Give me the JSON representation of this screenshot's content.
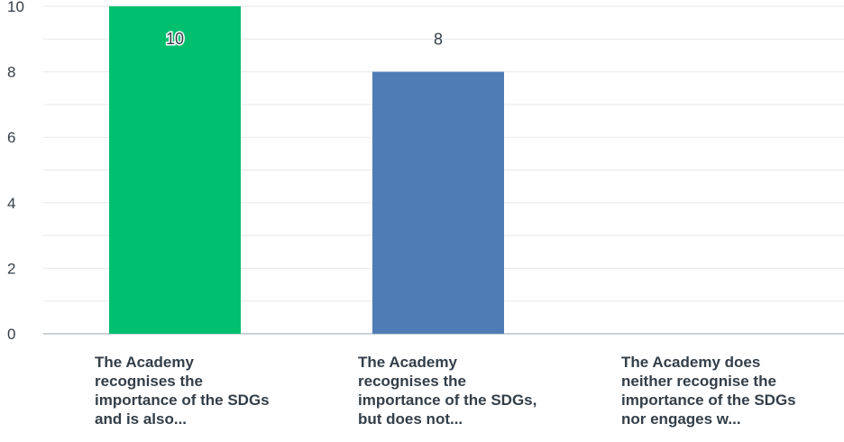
{
  "chart_data": {
    "type": "bar",
    "categories": [
      "The Academy recognises the importance of the SDGs and is also...",
      "The Academy recognises the importance of the SDGs, but does not...",
      "The Academy does neither recognise the importance of the SDGs nor engages w..."
    ],
    "values": [
      10,
      8,
      0
    ],
    "data_labels": [
      "10",
      "8",
      ""
    ],
    "bar_colors": [
      "#00bf6f",
      "#507cb6",
      "#6bc8cd"
    ],
    "ylim": [
      0,
      10
    ],
    "yticks": [
      "0",
      "2",
      "4",
      "6",
      "8",
      "10"
    ],
    "grid": true,
    "title": "",
    "xlabel": "",
    "ylabel": ""
  }
}
